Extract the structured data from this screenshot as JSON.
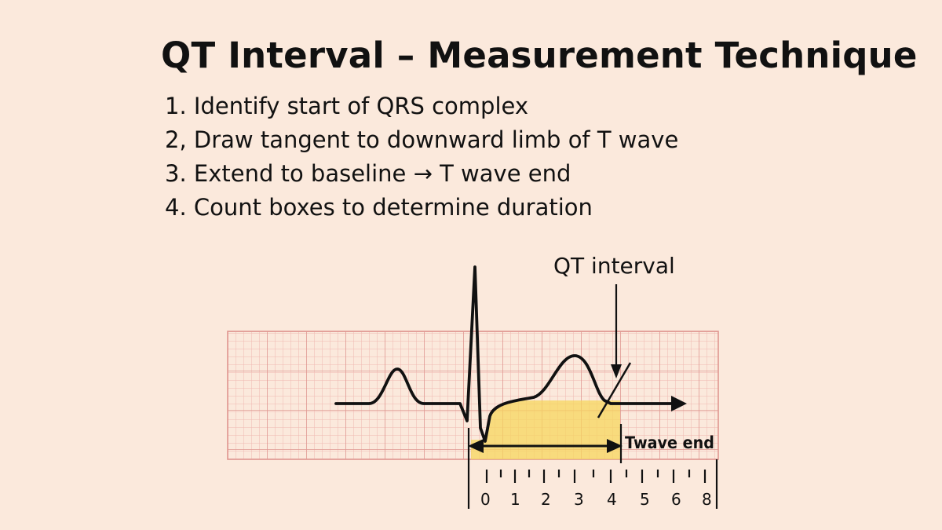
{
  "title": "QT Interval – Measurement Technique",
  "steps": [
    "1. Identify start of QRS complex",
    "2, Draw tangent to downward limb of T wave",
    "3. Extend to baseline → T wave end",
    "4. Count boxes to determine duration"
  ],
  "diagram": {
    "qt_label": "QT interval",
    "twave_end_label": "Twave end",
    "scale_numbers": [
      "0",
      "1",
      "2",
      "3",
      "4",
      "5",
      "6",
      "8"
    ]
  },
  "colors": {
    "background": "#fbe9dc",
    "grid_fine": "#efb7b1",
    "grid_major": "#e09892",
    "highlight": "#f7d55e",
    "ink": "#111111"
  }
}
